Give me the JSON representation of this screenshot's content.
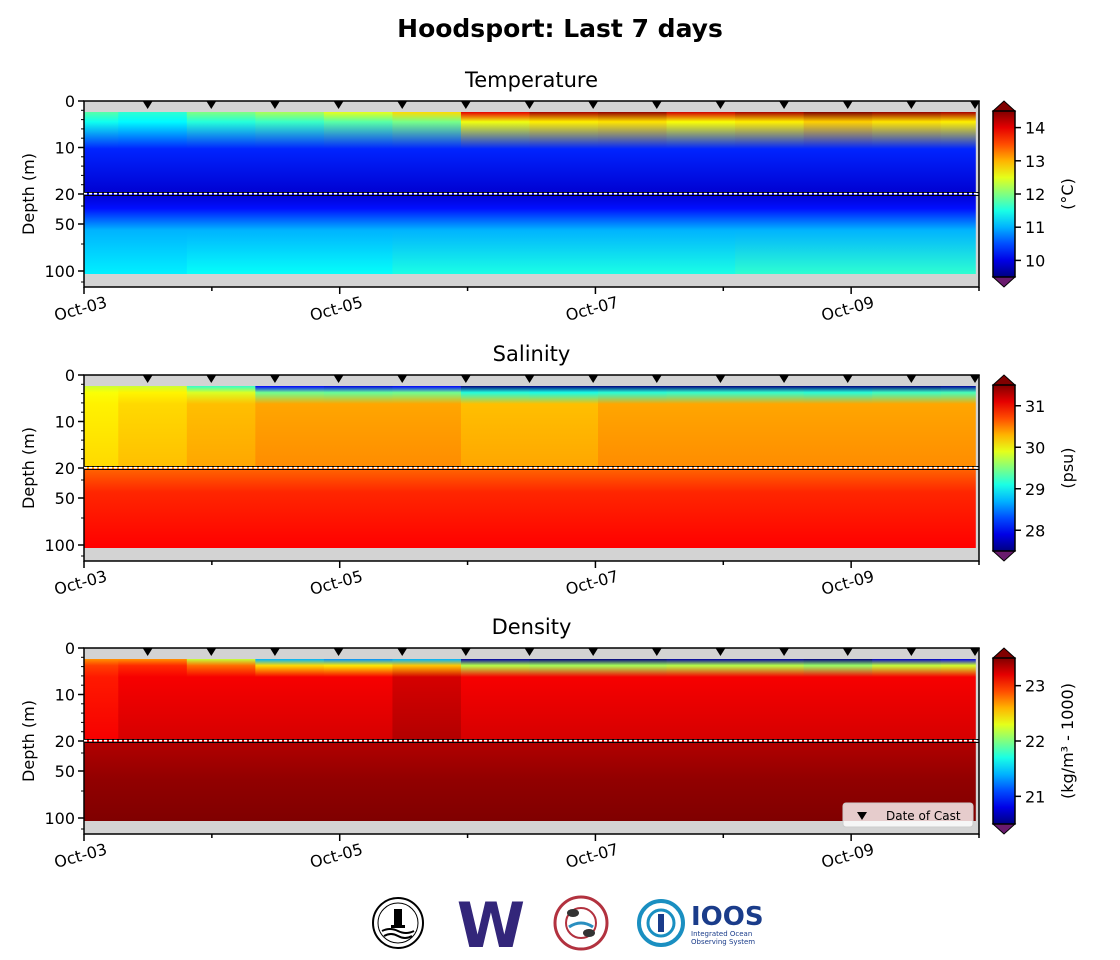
{
  "figure": {
    "title": "Hoodsport: Last 7 days",
    "legend_label": "Date of Cast",
    "logos": [
      {
        "name": "noaa-seal-logo"
      },
      {
        "name": "uw-logo",
        "text": "W"
      },
      {
        "name": "tribal-logo"
      },
      {
        "name": "ioos-logo",
        "text": "IOOS",
        "subtext": [
          "Integrated Ocean",
          "Observing System"
        ]
      }
    ]
  },
  "chart_data": [
    {
      "type": "heatmap",
      "title": "Temperature",
      "ylabel": "Depth (m)",
      "x_tick_labels": [
        "Oct-03",
        "Oct-05",
        "Oct-07",
        "Oct-09"
      ],
      "x_range": [
        "2025-10-03",
        "2025-10-10"
      ],
      "y_ticks_upper": [
        "0",
        "10",
        "20"
      ],
      "y_ticks_lower": [
        "50",
        "100"
      ],
      "y_break_depth": 20,
      "colorbar": {
        "label": "(°C)",
        "ticks": [
          "10",
          "11",
          "12",
          "13",
          "14"
        ],
        "range": [
          9.5,
          14.5
        ],
        "colormap": "jet",
        "extend": "both"
      },
      "cast_dates": [
        "Oct-03 12:00",
        "Oct-04 00:00",
        "Oct-04 12:00",
        "Oct-05 00:00",
        "Oct-05 12:00",
        "Oct-06 00:00",
        "Oct-06 12:00",
        "Oct-07 00:00",
        "Oct-07 12:00",
        "Oct-08 00:00",
        "Oct-08 12:00",
        "Oct-09 00:00",
        "Oct-09 12:00",
        "Oct-10 00:00"
      ],
      "surface_values": [
        11.8,
        11.6,
        12.0,
        12.2,
        12.5,
        12.8,
        14.0,
        14.3,
        14.4,
        14.1,
        14.3,
        14.6,
        14.4,
        14.3
      ],
      "upper_layer_minimum": 9.9,
      "deep_values": [
        11.3,
        11.3,
        11.4,
        11.4,
        11.4,
        11.5,
        11.5,
        11.5,
        11.5,
        11.5,
        11.6,
        11.6,
        11.6,
        11.6
      ]
    },
    {
      "type": "heatmap",
      "title": "Salinity",
      "ylabel": "Depth (m)",
      "x_tick_labels": [
        "Oct-03",
        "Oct-05",
        "Oct-07",
        "Oct-09"
      ],
      "x_range": [
        "2025-10-03",
        "2025-10-10"
      ],
      "y_ticks_upper": [
        "0",
        "10",
        "20"
      ],
      "y_ticks_lower": [
        "50",
        "100"
      ],
      "y_break_depth": 20,
      "colorbar": {
        "label": "(psu)",
        "ticks": [
          "28",
          "29",
          "30",
          "31"
        ],
        "range": [
          27.5,
          31.5
        ],
        "colormap": "jet",
        "extend": "both"
      },
      "surface_values": [
        29.8,
        29.8,
        29.2,
        28.0,
        27.9,
        28.0,
        27.4,
        27.3,
        27.3,
        27.4,
        27.4,
        27.3,
        27.5,
        27.6
      ],
      "upper_layer_values": [
        30.1,
        30.2,
        30.3,
        30.4,
        30.4,
        30.4,
        30.3,
        30.3,
        30.4,
        30.4,
        30.4,
        30.4,
        30.4,
        30.4
      ],
      "deep_values": [
        31.0,
        31.0,
        31.0,
        31.0,
        31.0,
        31.0,
        31.0,
        31.0,
        31.0,
        31.0,
        31.0,
        31.0,
        31.0,
        31.0
      ]
    },
    {
      "type": "heatmap",
      "title": "Density",
      "ylabel": "Depth (m)",
      "x_tick_labels": [
        "Oct-03",
        "Oct-05",
        "Oct-07",
        "Oct-09"
      ],
      "x_range": [
        "2025-10-03",
        "2025-10-10"
      ],
      "y_ticks_upper": [
        "0",
        "10",
        "20"
      ],
      "y_ticks_lower": [
        "50",
        "100"
      ],
      "y_break_depth": 20,
      "colorbar": {
        "label": "(kg/m³ - 1000)",
        "ticks": [
          "21",
          "22",
          "23"
        ],
        "range": [
          20.5,
          23.5
        ],
        "colormap": "jet",
        "extend": "both"
      },
      "surface_values": [
        22.7,
        22.7,
        22.2,
        21.4,
        21.3,
        21.4,
        20.6,
        20.5,
        20.5,
        20.6,
        20.6,
        20.4,
        20.7,
        20.8
      ],
      "upper_layer_values": [
        23.1,
        23.2,
        23.2,
        23.2,
        23.2,
        23.3,
        23.2,
        23.2,
        23.2,
        23.2,
        23.2,
        23.2,
        23.2,
        23.2
      ],
      "deep_values": [
        23.5,
        23.5,
        23.5,
        23.5,
        23.5,
        23.5,
        23.5,
        23.5,
        23.5,
        23.5,
        23.5,
        23.5,
        23.5,
        23.5
      ]
    }
  ]
}
